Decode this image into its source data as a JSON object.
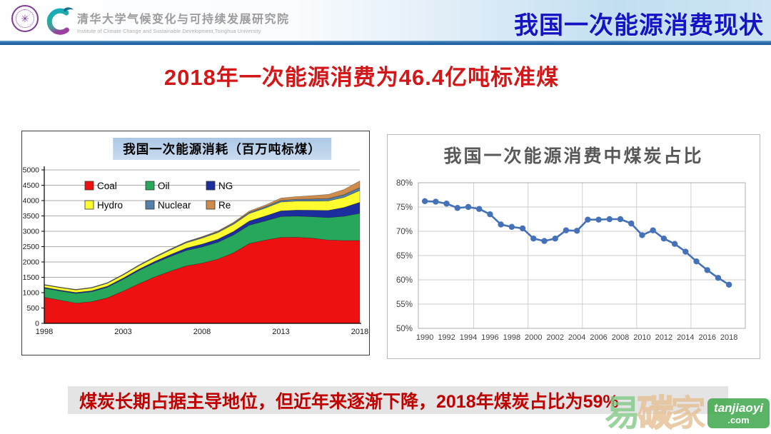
{
  "header": {
    "institute_cn": "清华大学气候变化与可持续发展研究院",
    "institute_en": "Institute of Climate Change and Sustainable Development,Tsinghua University",
    "page_title": "我国一次能源消费现状"
  },
  "icons": {
    "seal_glyph": "✳"
  },
  "headline": {
    "text": "2018年一次能源消费为46.4亿吨标准煤"
  },
  "footer_note": {
    "text": "煤炭长期占据主导地位，但近年来逐渐下降，2018年煤炭占比为59%"
  },
  "watermark": {
    "chars": [
      "易",
      "碳",
      "家"
    ],
    "badge_line1": "tanjiaoyi",
    "badge_line2": ".com",
    "green": "#7FC884",
    "tan": "#E4BE92",
    "badge_bg": "#3EA84B"
  },
  "colors": {
    "header_title": "#1414C4",
    "headline_red": "#D31718",
    "footer_red": "#C00000",
    "divider_blue": "#1C5E9F",
    "line_blue": "#4471B8"
  },
  "chart_data": [
    {
      "type": "area",
      "stacked": true,
      "title": "我国一次能源消耗（百万吨标煤）",
      "x": [
        1998,
        1999,
        2000,
        2001,
        2002,
        2003,
        2004,
        2005,
        2006,
        2007,
        2008,
        2009,
        2010,
        2011,
        2012,
        2013,
        2014,
        2015,
        2016,
        2017,
        2018
      ],
      "x_ticks": [
        1998,
        2003,
        2008,
        2013,
        2018
      ],
      "ylim": [
        0,
        5000
      ],
      "y_step": 500,
      "y_tick_labels": [
        "0",
        "500",
        "1000",
        "1500",
        "2000",
        "2500",
        "3000",
        "3500",
        "4000",
        "4500",
        "5000"
      ],
      "grid": "horizontal",
      "legend_position": "inside-top-left",
      "legend_rows": [
        [
          "Coal",
          "Oil",
          "NG"
        ],
        [
          "Hydro",
          "Nuclear",
          "Re"
        ]
      ],
      "series": [
        {
          "name": "Coal",
          "color": "#EE1111",
          "values": [
            850,
            755,
            660,
            705,
            830,
            1050,
            1290,
            1510,
            1700,
            1870,
            1960,
            2090,
            2300,
            2600,
            2710,
            2800,
            2805,
            2775,
            2715,
            2700,
            2700
          ]
        },
        {
          "name": "Oil",
          "color": "#27A75C",
          "values": [
            295,
            300,
            315,
            325,
            345,
            385,
            430,
            455,
            480,
            505,
            530,
            550,
            580,
            600,
            625,
            680,
            690,
            700,
            730,
            790,
            885
          ]
        },
        {
          "name": "NG",
          "color": "#1C2E9E",
          "values": [
            28,
            28,
            30,
            32,
            35,
            40,
            45,
            52,
            62,
            75,
            90,
            100,
            115,
            135,
            160,
            185,
            195,
            210,
            235,
            285,
            360
          ]
        },
        {
          "name": "Hydro",
          "color": "#FCFC2F",
          "values": [
            78,
            80,
            84,
            90,
            95,
            100,
            112,
            126,
            148,
            172,
            198,
            218,
            235,
            245,
            258,
            290,
            295,
            300,
            310,
            330,
            385
          ]
        },
        {
          "name": "Nuclear",
          "color": "#5581A8",
          "values": [
            12,
            13,
            14,
            15,
            17,
            19,
            21,
            23,
            25,
            27,
            29,
            31,
            34,
            38,
            42,
            50,
            56,
            66,
            76,
            86,
            95
          ]
        },
        {
          "name": "Re",
          "color": "#CE8B4C",
          "values": [
            3,
            3,
            4,
            4,
            5,
            6,
            7,
            8,
            10,
            13,
            17,
            22,
            30,
            42,
            55,
            75,
            90,
            110,
            135,
            170,
            215
          ]
        }
      ]
    },
    {
      "type": "line",
      "title": "我国一次能源消费中煤炭占比",
      "x": [
        1990,
        1991,
        1992,
        1993,
        1994,
        1995,
        1996,
        1997,
        1998,
        1999,
        2000,
        2001,
        2002,
        2003,
        2004,
        2005,
        2006,
        2007,
        2008,
        2009,
        2010,
        2011,
        2012,
        2013,
        2014,
        2015,
        2016,
        2017,
        2018
      ],
      "values": [
        76.2,
        76.1,
        75.7,
        74.8,
        75.0,
        74.6,
        73.5,
        71.4,
        70.9,
        70.6,
        68.5,
        68.0,
        68.5,
        70.2,
        70.1,
        72.4,
        72.4,
        72.5,
        72.5,
        71.6,
        69.2,
        70.2,
        68.5,
        67.4,
        65.8,
        63.8,
        62.0,
        60.4,
        59.0
      ],
      "ylim": [
        50,
        80
      ],
      "y_step": 5,
      "y_tick_labels": [
        "80%",
        "75%",
        "70%",
        "65%",
        "60%",
        "55%",
        "50%"
      ],
      "x_tick_labels": [
        "1990",
        "1992",
        "1994",
        "1996",
        "1998",
        "2000",
        "2002",
        "2004",
        "2006",
        "2008",
        "2010",
        "2012",
        "2014",
        "2016",
        "2018"
      ],
      "grid": "both",
      "legend_position": "none",
      "line_color": "#4471B8",
      "marker": "circle"
    }
  ]
}
